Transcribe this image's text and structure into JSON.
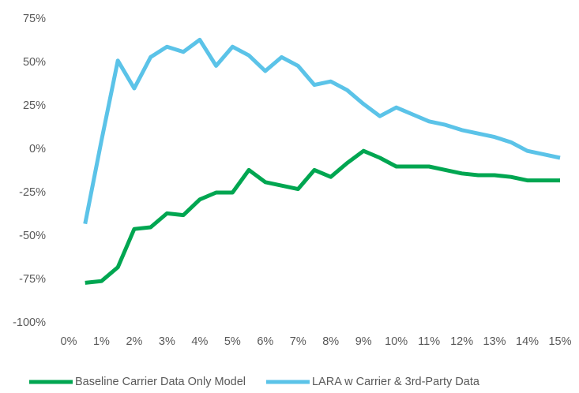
{
  "chart_data": {
    "type": "line",
    "x": [
      0.5,
      1,
      1.5,
      2,
      2.5,
      3,
      3.5,
      4,
      4.5,
      5,
      5.5,
      6,
      6.5,
      7,
      7.5,
      8,
      8.5,
      9,
      9.5,
      10,
      10.5,
      11,
      11.5,
      12,
      12.5,
      13,
      13.5,
      14,
      14.5,
      15
    ],
    "series": [
      {
        "name": "Baseline Carrier Data Only Model",
        "color": "#00a651",
        "values": [
          -77,
          -76,
          -68,
          -46,
          -45,
          -37,
          -38,
          -29,
          -25,
          -25,
          -12,
          -19,
          -21,
          -23,
          -12,
          -16,
          -8,
          -1,
          -5,
          -10,
          -10,
          -10,
          -12,
          -14,
          -15,
          -15,
          -16,
          -18,
          -18,
          -18
        ]
      },
      {
        "name": "LARA w Carrier & 3rd-Party Data",
        "color": "#5bc3e8",
        "values": [
          -43,
          5,
          51,
          35,
          53,
          59,
          56,
          63,
          48,
          59,
          54,
          45,
          53,
          48,
          37,
          39,
          34,
          26,
          19,
          24,
          20,
          16,
          14,
          11,
          9,
          7,
          4,
          -1,
          -3,
          -5
        ]
      }
    ],
    "xlim": [
      0,
      15
    ],
    "xticks": [
      {
        "value": 0,
        "label": "0%"
      },
      {
        "value": 1,
        "label": "1%"
      },
      {
        "value": 2,
        "label": "2%"
      },
      {
        "value": 3,
        "label": "3%"
      },
      {
        "value": 4,
        "label": "4%"
      },
      {
        "value": 5,
        "label": "5%"
      },
      {
        "value": 6,
        "label": "6%"
      },
      {
        "value": 7,
        "label": "7%"
      },
      {
        "value": 8,
        "label": "8%"
      },
      {
        "value": 9,
        "label": "9%"
      },
      {
        "value": 10,
        "label": "10%"
      },
      {
        "value": 11,
        "label": "11%"
      },
      {
        "value": 12,
        "label": "12%"
      },
      {
        "value": 13,
        "label": "13%"
      },
      {
        "value": 14,
        "label": "14%"
      },
      {
        "value": 15,
        "label": "15%"
      }
    ],
    "ylim": [
      -100,
      75
    ],
    "yticks": [
      {
        "value": -100,
        "label": "-100%"
      },
      {
        "value": -75,
        "label": "-75%"
      },
      {
        "value": -50,
        "label": "-50%"
      },
      {
        "value": -25,
        "label": "-25%"
      },
      {
        "value": 0,
        "label": "0%"
      },
      {
        "value": 25,
        "label": "25%"
      },
      {
        "value": 50,
        "label": "50%"
      },
      {
        "value": 75,
        "label": "75%"
      }
    ],
    "grid": false,
    "legend": "bottom"
  }
}
